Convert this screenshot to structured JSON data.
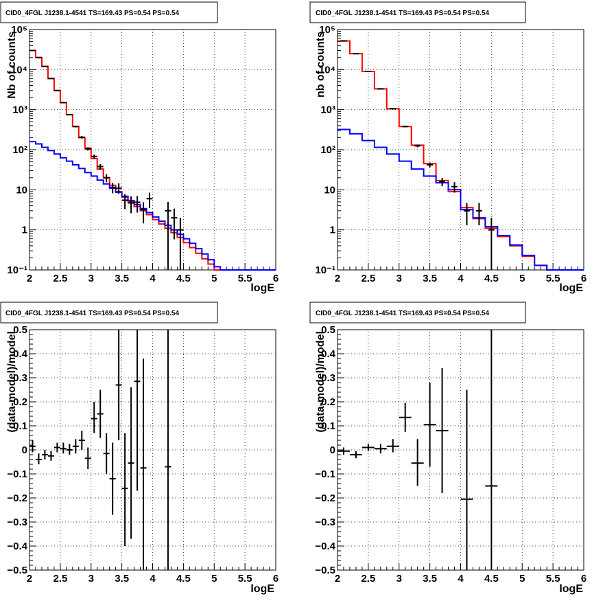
{
  "chart_data": [
    {
      "type": "step",
      "title": "CID0_4FGL J1238.1-4541 TS=169.43 PS=0.54 PS=0.54",
      "xlabel": "logE",
      "ylabel": "Nb of counts",
      "xlim": [
        2,
        6
      ],
      "ylim": [
        0.1,
        100000
      ],
      "yscale": "log",
      "xticks": [
        "2",
        "2.5",
        "3",
        "3.5",
        "4",
        "4.5",
        "5",
        "5.5",
        "6"
      ],
      "yticks": [
        "10⁻¹",
        "1",
        "10",
        "10²",
        "10³",
        "10⁴",
        "10⁵"
      ],
      "grid": true,
      "series": [
        {
          "color": "#ff0000",
          "bin_edges": [
            2.0,
            2.1,
            2.2,
            2.3,
            2.4,
            2.5,
            2.6,
            2.7,
            2.8,
            2.9,
            3.0,
            3.1,
            3.2,
            3.3,
            3.4,
            3.5,
            3.6,
            3.7,
            3.8,
            3.9,
            4.0,
            4.1,
            4.2,
            4.3,
            4.4,
            4.5,
            4.6,
            4.7,
            4.8,
            4.9,
            5.0,
            5.1,
            5.2,
            5.3,
            5.4,
            5.5,
            5.6,
            5.7,
            5.8,
            5.9,
            6.0
          ],
          "values": [
            30000,
            20000,
            12000,
            6000,
            3000,
            1500,
            750,
            380,
            200,
            110,
            60,
            33,
            20,
            13,
            9,
            6.5,
            5,
            3.8,
            3,
            2.4,
            1.8,
            1.4,
            1.1,
            0.85,
            0.65,
            0.48,
            0.36,
            0.26,
            0.19,
            0.14,
            0.1,
            0.1,
            0.1,
            0.1,
            0.1,
            0.1,
            0.1,
            0.1,
            0.1,
            0.1
          ]
        },
        {
          "color": "#0000ff",
          "bin_edges": [
            2.0,
            2.1,
            2.2,
            2.3,
            2.4,
            2.5,
            2.6,
            2.7,
            2.8,
            2.9,
            3.0,
            3.1,
            3.2,
            3.3,
            3.4,
            3.5,
            3.6,
            3.7,
            3.8,
            3.9,
            4.0,
            4.1,
            4.2,
            4.3,
            4.4,
            4.5,
            4.6,
            4.7,
            4.8,
            4.9,
            5.0,
            5.1,
            5.2,
            5.3,
            5.4,
            5.5,
            5.6,
            5.7,
            5.8,
            5.9,
            6.0
          ],
          "values": [
            160,
            140,
            115,
            95,
            78,
            63,
            52,
            42,
            34,
            27,
            22,
            17.5,
            14,
            11,
            8.7,
            6.9,
            5.4,
            4.3,
            3.4,
            2.7,
            2.1,
            1.65,
            1.3,
            1.0,
            0.78,
            0.6,
            0.46,
            0.34,
            0.25,
            0.18,
            0.12,
            0.1,
            0.1,
            0.1,
            0.1,
            0.1,
            0.1,
            0.1,
            0.1,
            0.1
          ]
        },
        {
          "color": "#000000",
          "points": [
            {
              "x": 2.05,
              "y": 30000,
              "ylo": 29000,
              "yhi": 31000
            },
            {
              "x": 2.15,
              "y": 20000,
              "ylo": 19500,
              "yhi": 20500
            },
            {
              "x": 2.25,
              "y": 12000,
              "ylo": 11800,
              "yhi": 12200
            },
            {
              "x": 2.35,
              "y": 6000,
              "ylo": 5900,
              "yhi": 6100
            },
            {
              "x": 2.45,
              "y": 3000,
              "ylo": 2930,
              "yhi": 3070
            },
            {
              "x": 2.55,
              "y": 1500,
              "ylo": 1460,
              "yhi": 1540
            },
            {
              "x": 2.65,
              "y": 750,
              "ylo": 725,
              "yhi": 775
            },
            {
              "x": 2.75,
              "y": 380,
              "ylo": 360,
              "yhi": 400
            },
            {
              "x": 2.85,
              "y": 205,
              "ylo": 190,
              "yhi": 220
            },
            {
              "x": 2.95,
              "y": 105,
              "ylo": 95,
              "yhi": 115
            },
            {
              "x": 3.05,
              "y": 68,
              "ylo": 60,
              "yhi": 76
            },
            {
              "x": 3.15,
              "y": 38,
              "ylo": 32,
              "yhi": 44
            },
            {
              "x": 3.25,
              "y": 20,
              "ylo": 15.5,
              "yhi": 24.5
            },
            {
              "x": 3.35,
              "y": 11.5,
              "ylo": 8.2,
              "yhi": 14.8
            },
            {
              "x": 3.45,
              "y": 11.0,
              "ylo": 8,
              "yhi": 14.5
            },
            {
              "x": 3.55,
              "y": 5.5,
              "ylo": 3.3,
              "yhi": 7.8
            },
            {
              "x": 3.65,
              "y": 4.7,
              "ylo": 2.6,
              "yhi": 6.9
            },
            {
              "x": 3.75,
              "y": 4.9,
              "ylo": 2.7,
              "yhi": 7.0
            },
            {
              "x": 3.85,
              "y": 3.2,
              "ylo": 1.45,
              "yhi": 4.9
            },
            {
              "x": 3.95,
              "y": 6.0,
              "ylo": 3.5,
              "yhi": 8.5
            },
            {
              "x": 4.25,
              "y": 3.0,
              "ylo": 0.1,
              "yhi": 5.0
            },
            {
              "x": 4.35,
              "y": 2.0,
              "ylo": 0.58,
              "yhi": 3.4
            },
            {
              "x": 4.45,
              "y": 1.0,
              "ylo": 0.1,
              "yhi": 2.0
            }
          ]
        }
      ]
    },
    {
      "type": "step",
      "title": "CID0_4FGL J1238.1-4541 TS=169.43 PS=0.54 PS=0.54",
      "xlabel": "logE",
      "ylabel": "nb of counts",
      "xlim": [
        2,
        6
      ],
      "ylim": [
        0.1,
        100000
      ],
      "yscale": "log",
      "xticks": [
        "2",
        "2.5",
        "3",
        "3.5",
        "4",
        "4.5",
        "5",
        "5.5",
        "6"
      ],
      "yticks": [
        "10⁻¹",
        "1",
        "10",
        "10²",
        "10³",
        "10⁴",
        "10⁵"
      ],
      "grid": true,
      "series": [
        {
          "color": "#ff0000",
          "bin_edges": [
            2.0,
            2.2,
            2.4,
            2.6,
            2.8,
            3.0,
            3.2,
            3.4,
            3.6,
            3.8,
            4.0,
            4.2,
            4.4,
            4.6,
            4.8,
            5.0,
            5.2,
            5.4,
            5.6,
            5.8,
            6.0
          ],
          "values": [
            52000,
            25000,
            9000,
            3300,
            1050,
            380,
            130,
            45,
            17,
            9,
            3.6,
            1.9,
            1.1,
            0.68,
            0.4,
            0.22,
            0.13,
            0.1,
            0.1,
            0.1
          ]
        },
        {
          "color": "#0000ff",
          "bin_edges": [
            2.0,
            2.2,
            2.4,
            2.6,
            2.8,
            3.0,
            3.2,
            3.4,
            3.6,
            3.8,
            4.0,
            4.2,
            4.4,
            4.6,
            4.8,
            5.0,
            5.2,
            5.4,
            5.6,
            5.8,
            6.0
          ],
          "values": [
            320,
            250,
            170,
            115,
            78,
            52,
            33,
            22,
            15,
            10,
            3.2,
            2.0,
            1.2,
            0.72,
            0.42,
            0.23,
            0.13,
            0.1,
            0.1,
            0.1
          ]
        },
        {
          "color": "#000000",
          "points": [
            {
              "x": 2.1,
              "y": 52000,
              "ylo": 51000,
              "yhi": 53000
            },
            {
              "x": 2.3,
              "y": 25000,
              "ylo": 24600,
              "yhi": 25400
            },
            {
              "x": 2.5,
              "y": 9000,
              "ylo": 8800,
              "yhi": 9200
            },
            {
              "x": 2.7,
              "y": 3300,
              "ylo": 3200,
              "yhi": 3400
            },
            {
              "x": 2.9,
              "y": 1060,
              "ylo": 1030,
              "yhi": 1090
            },
            {
              "x": 3.1,
              "y": 380,
              "ylo": 360,
              "yhi": 400
            },
            {
              "x": 3.3,
              "y": 125,
              "ylo": 115,
              "yhi": 135
            },
            {
              "x": 3.5,
              "y": 42,
              "ylo": 36,
              "yhi": 48
            },
            {
              "x": 3.7,
              "y": 16,
              "ylo": 12.3,
              "yhi": 19.7
            },
            {
              "x": 3.9,
              "y": 12,
              "ylo": 8.5,
              "yhi": 15.5
            },
            {
              "x": 4.1,
              "y": 3.0,
              "ylo": 1.3,
              "yhi": 4.7
            },
            {
              "x": 4.3,
              "y": 3.0,
              "ylo": 1.3,
              "yhi": 4.7
            },
            {
              "x": 4.5,
              "y": 1.0,
              "ylo": 0.1,
              "yhi": 2.0
            }
          ]
        }
      ]
    },
    {
      "type": "scatter",
      "title": "CID0_4FGL J1238.1-4541 TS=169.43 PS=0.54 PS=0.54",
      "xlabel": "logE",
      "ylabel": "(data-model)/model",
      "xlim": [
        2,
        6
      ],
      "ylim": [
        -0.5,
        0.5
      ],
      "xticks": [
        "2",
        "2.5",
        "3",
        "3.5",
        "4",
        "4.5",
        "5",
        "5.5",
        "6"
      ],
      "yticks": [
        "−0.5",
        "−0.4",
        "−0.3",
        "−0.2",
        "−0.1",
        "0",
        "0.1",
        "0.2",
        "0.3",
        "0.4",
        "0.5"
      ],
      "grid": true,
      "series": [
        {
          "color": "#000000",
          "xhalf": 0.05,
          "points": [
            {
              "x": 2.05,
              "y": 0.015,
              "ylo": -0.01,
              "yhi": 0.04
            },
            {
              "x": 2.15,
              "y": -0.04,
              "ylo": -0.06,
              "yhi": -0.015
            },
            {
              "x": 2.25,
              "y": -0.02,
              "ylo": -0.04,
              "yhi": 0.0
            },
            {
              "x": 2.35,
              "y": -0.025,
              "ylo": -0.045,
              "yhi": -0.005
            },
            {
              "x": 2.45,
              "y": 0.01,
              "ylo": -0.01,
              "yhi": 0.03
            },
            {
              "x": 2.55,
              "y": 0.005,
              "ylo": -0.015,
              "yhi": 0.03
            },
            {
              "x": 2.65,
              "y": 0.0,
              "ylo": -0.02,
              "yhi": 0.025
            },
            {
              "x": 2.75,
              "y": 0.015,
              "ylo": -0.015,
              "yhi": 0.045
            },
            {
              "x": 2.85,
              "y": 0.04,
              "ylo": 0.0,
              "yhi": 0.08
            },
            {
              "x": 2.95,
              "y": -0.035,
              "ylo": -0.08,
              "yhi": 0.01
            },
            {
              "x": 3.05,
              "y": 0.13,
              "ylo": 0.07,
              "yhi": 0.2
            },
            {
              "x": 3.15,
              "y": 0.15,
              "ylo": 0.05,
              "yhi": 0.25
            },
            {
              "x": 3.25,
              "y": -0.015,
              "ylo": -0.1,
              "yhi": 0.07
            },
            {
              "x": 3.35,
              "y": -0.12,
              "ylo": -0.27,
              "yhi": 0.03
            },
            {
              "x": 3.45,
              "y": 0.27,
              "ylo": 0.04,
              "yhi": 0.5
            },
            {
              "x": 3.55,
              "y": -0.16,
              "ylo": -0.4,
              "yhi": 0.07
            },
            {
              "x": 3.65,
              "y": -0.055,
              "ylo": -0.37,
              "yhi": 0.26
            },
            {
              "x": 3.75,
              "y": 0.285,
              "ylo": -0.17,
              "yhi": 0.5
            },
            {
              "x": 3.85,
              "y": -0.075,
              "ylo": -0.5,
              "yhi": 0.38
            },
            {
              "x": 4.25,
              "y": -0.07,
              "ylo": -0.5,
              "yhi": 0.5
            }
          ]
        }
      ]
    },
    {
      "type": "scatter",
      "title": "CID0_4FGL J1238.1-4541 TS=169.43 PS=0.54 PS=0.54",
      "xlabel": "logE",
      "ylabel": "(data-model)/model",
      "xlim": [
        2,
        6
      ],
      "ylim": [
        -0.5,
        0.5
      ],
      "xticks": [
        "2",
        "2.5",
        "3",
        "3.5",
        "4",
        "4.5",
        "5",
        "5.5",
        "6"
      ],
      "yticks": [
        "−0.5",
        "−0.4",
        "−0.3",
        "−0.2",
        "−0.1",
        "0",
        "0.1",
        "0.2",
        "0.3",
        "0.4",
        "0.5"
      ],
      "grid": true,
      "series": [
        {
          "color": "#000000",
          "xhalf": 0.1,
          "points": [
            {
              "x": 2.1,
              "y": -0.005,
              "ylo": -0.02,
              "yhi": 0.01
            },
            {
              "x": 2.3,
              "y": -0.02,
              "ylo": -0.035,
              "yhi": -0.005
            },
            {
              "x": 2.5,
              "y": 0.01,
              "ylo": -0.005,
              "yhi": 0.025
            },
            {
              "x": 2.7,
              "y": 0.005,
              "ylo": -0.015,
              "yhi": 0.025
            },
            {
              "x": 2.9,
              "y": 0.015,
              "ylo": -0.01,
              "yhi": 0.045
            },
            {
              "x": 3.1,
              "y": 0.135,
              "ylo": 0.075,
              "yhi": 0.195
            },
            {
              "x": 3.3,
              "y": -0.055,
              "ylo": -0.15,
              "yhi": 0.045
            },
            {
              "x": 3.5,
              "y": 0.105,
              "ylo": -0.07,
              "yhi": 0.28
            },
            {
              "x": 3.7,
              "y": 0.08,
              "ylo": -0.18,
              "yhi": 0.34
            },
            {
              "x": 4.1,
              "y": -0.205,
              "ylo": -0.5,
              "yhi": 0.25
            },
            {
              "x": 4.5,
              "y": -0.15,
              "ylo": -0.5,
              "yhi": 0.5
            }
          ]
        }
      ]
    }
  ]
}
